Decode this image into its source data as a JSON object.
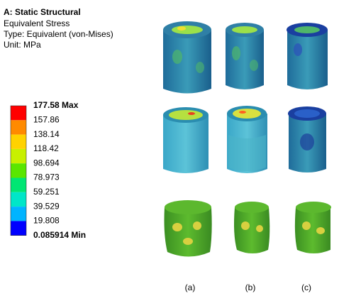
{
  "header": {
    "title": "A: Static Structural",
    "lines": [
      "Equivalent Stress",
      "Type: Equivalent (von-Mises)",
      "Unit: MPa"
    ]
  },
  "legend": {
    "labels": [
      "177.58 Max",
      "157.86",
      "138.14",
      "118.42",
      "98.694",
      "78.973",
      "59.251",
      "39.529",
      "19.808",
      "0.085914 Min"
    ],
    "colors": [
      "#ff0000",
      "#ff8a00",
      "#ffd200",
      "#c8f000",
      "#5ae600",
      "#00e673",
      "#00e6c8",
      "#00b4ff",
      "#0000ff"
    ]
  },
  "columns": [
    "(a)",
    "(b)",
    "(c)"
  ]
}
